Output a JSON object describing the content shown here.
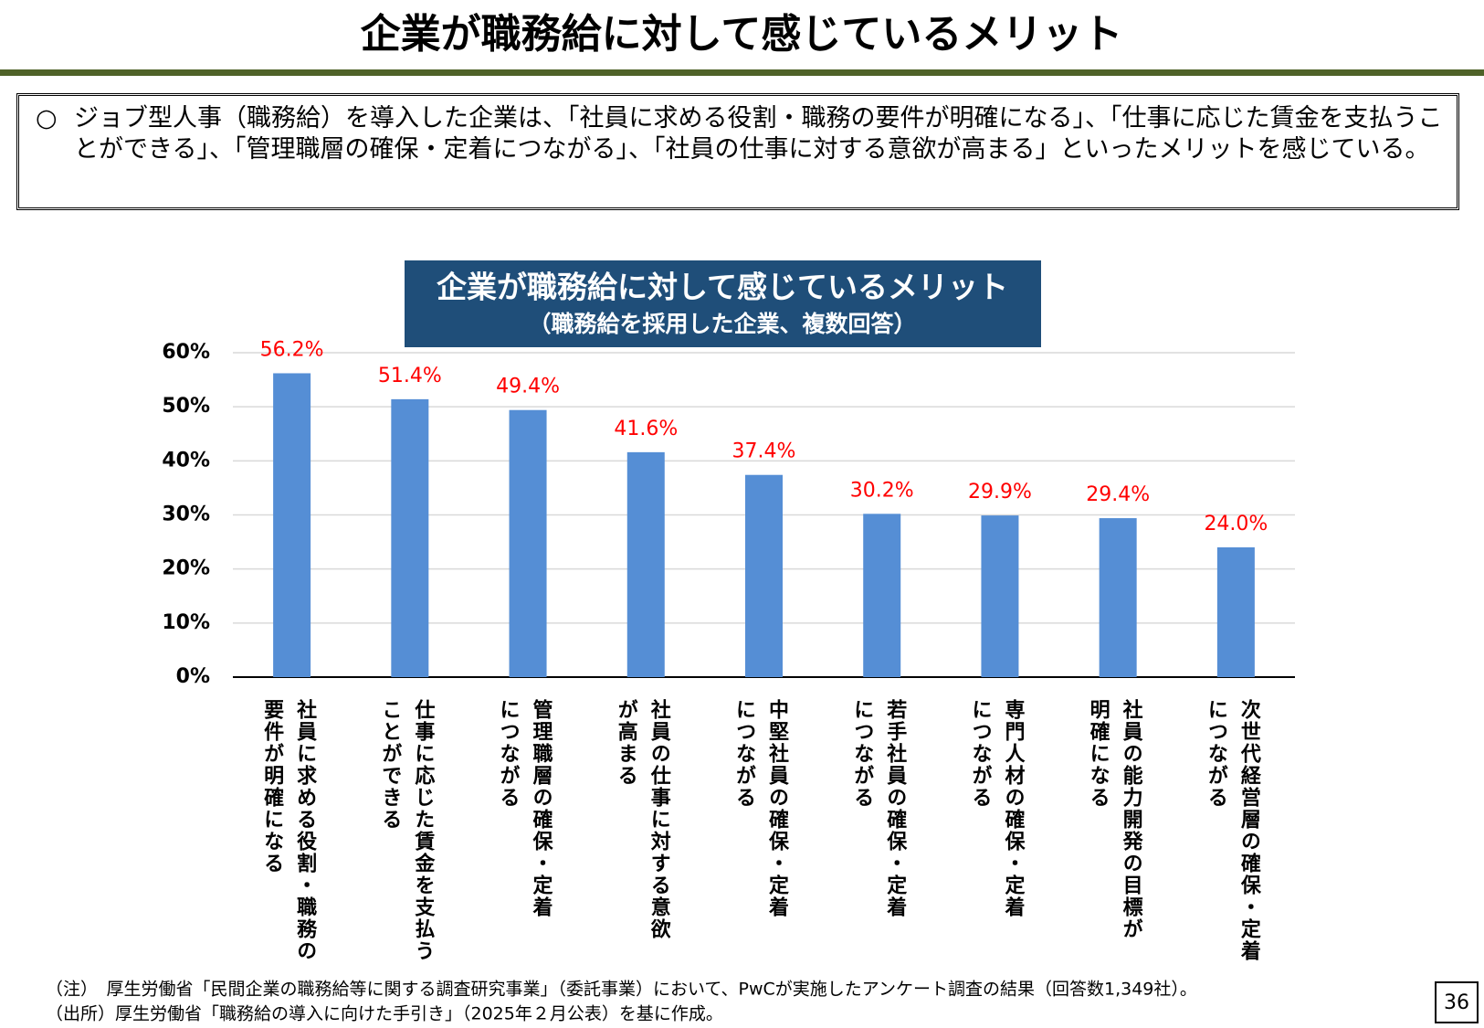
{
  "page_title": "企業が職務給に対して感じているメリット",
  "summary": {
    "bullet": "○",
    "text": "ジョブ型人事（職務給）を導入した企業は、「社員に求める役割・職務の要件が明確になる」、「仕事に応じた賃金を支払うことができる」、「管理職層の確保・定着につながる」、「社員の仕事に対する意欲が高まる」といったメリットを感じている。"
  },
  "chart_data": {
    "type": "bar",
    "title": "企業が職務給に対して感じているメリット",
    "subtitle": "（職務給を採用した企業、複数回答）",
    "categories": [
      [
        "社員に求める役割・職務の",
        "要件が明確になる"
      ],
      [
        "仕事に応じた賃金を支払う",
        "ことができる"
      ],
      [
        "管理職層の確保・定着",
        "につながる"
      ],
      [
        "社員の仕事に対する意欲",
        "が高まる"
      ],
      [
        "中堅社員の確保・定着",
        "につながる"
      ],
      [
        "若手社員の確保・定着",
        "につながる"
      ],
      [
        "専門人材の確保・定着",
        "につながる"
      ],
      [
        "社員の能力開発の目標が",
        "明確になる"
      ],
      [
        "次世代経営層の確保・定着",
        "につながる"
      ]
    ],
    "values": [
      56.2,
      51.4,
      49.4,
      41.6,
      37.4,
      30.2,
      29.9,
      29.4,
      24.0
    ],
    "value_labels": [
      "56.2%",
      "51.4%",
      "49.4%",
      "41.6%",
      "37.4%",
      "30.2%",
      "29.9%",
      "29.4%",
      "24.0%"
    ],
    "color": "#558ed5",
    "label_color": "#ff0000",
    "ylim": [
      0,
      60
    ],
    "yticks": [
      {
        "value": 0,
        "label": "0%"
      },
      {
        "value": 10,
        "label": "10%"
      },
      {
        "value": 20,
        "label": "20%"
      },
      {
        "value": 30,
        "label": "30%"
      },
      {
        "value": 40,
        "label": "40%"
      },
      {
        "value": 50,
        "label": "50%"
      },
      {
        "value": 60,
        "label": "60%"
      }
    ],
    "grid": true
  },
  "notes": [
    "（注）　厚生労働省「民間企業の職務給等に関する調査研究事業」（委託事業）において、PwCが実施したアンケート調査の結果（回答数1,349社）。",
    "（出所）厚生労働省「職務給の導入に向けた手引き」（2025年２月公表）を基に作成。"
  ],
  "page_number": "36"
}
